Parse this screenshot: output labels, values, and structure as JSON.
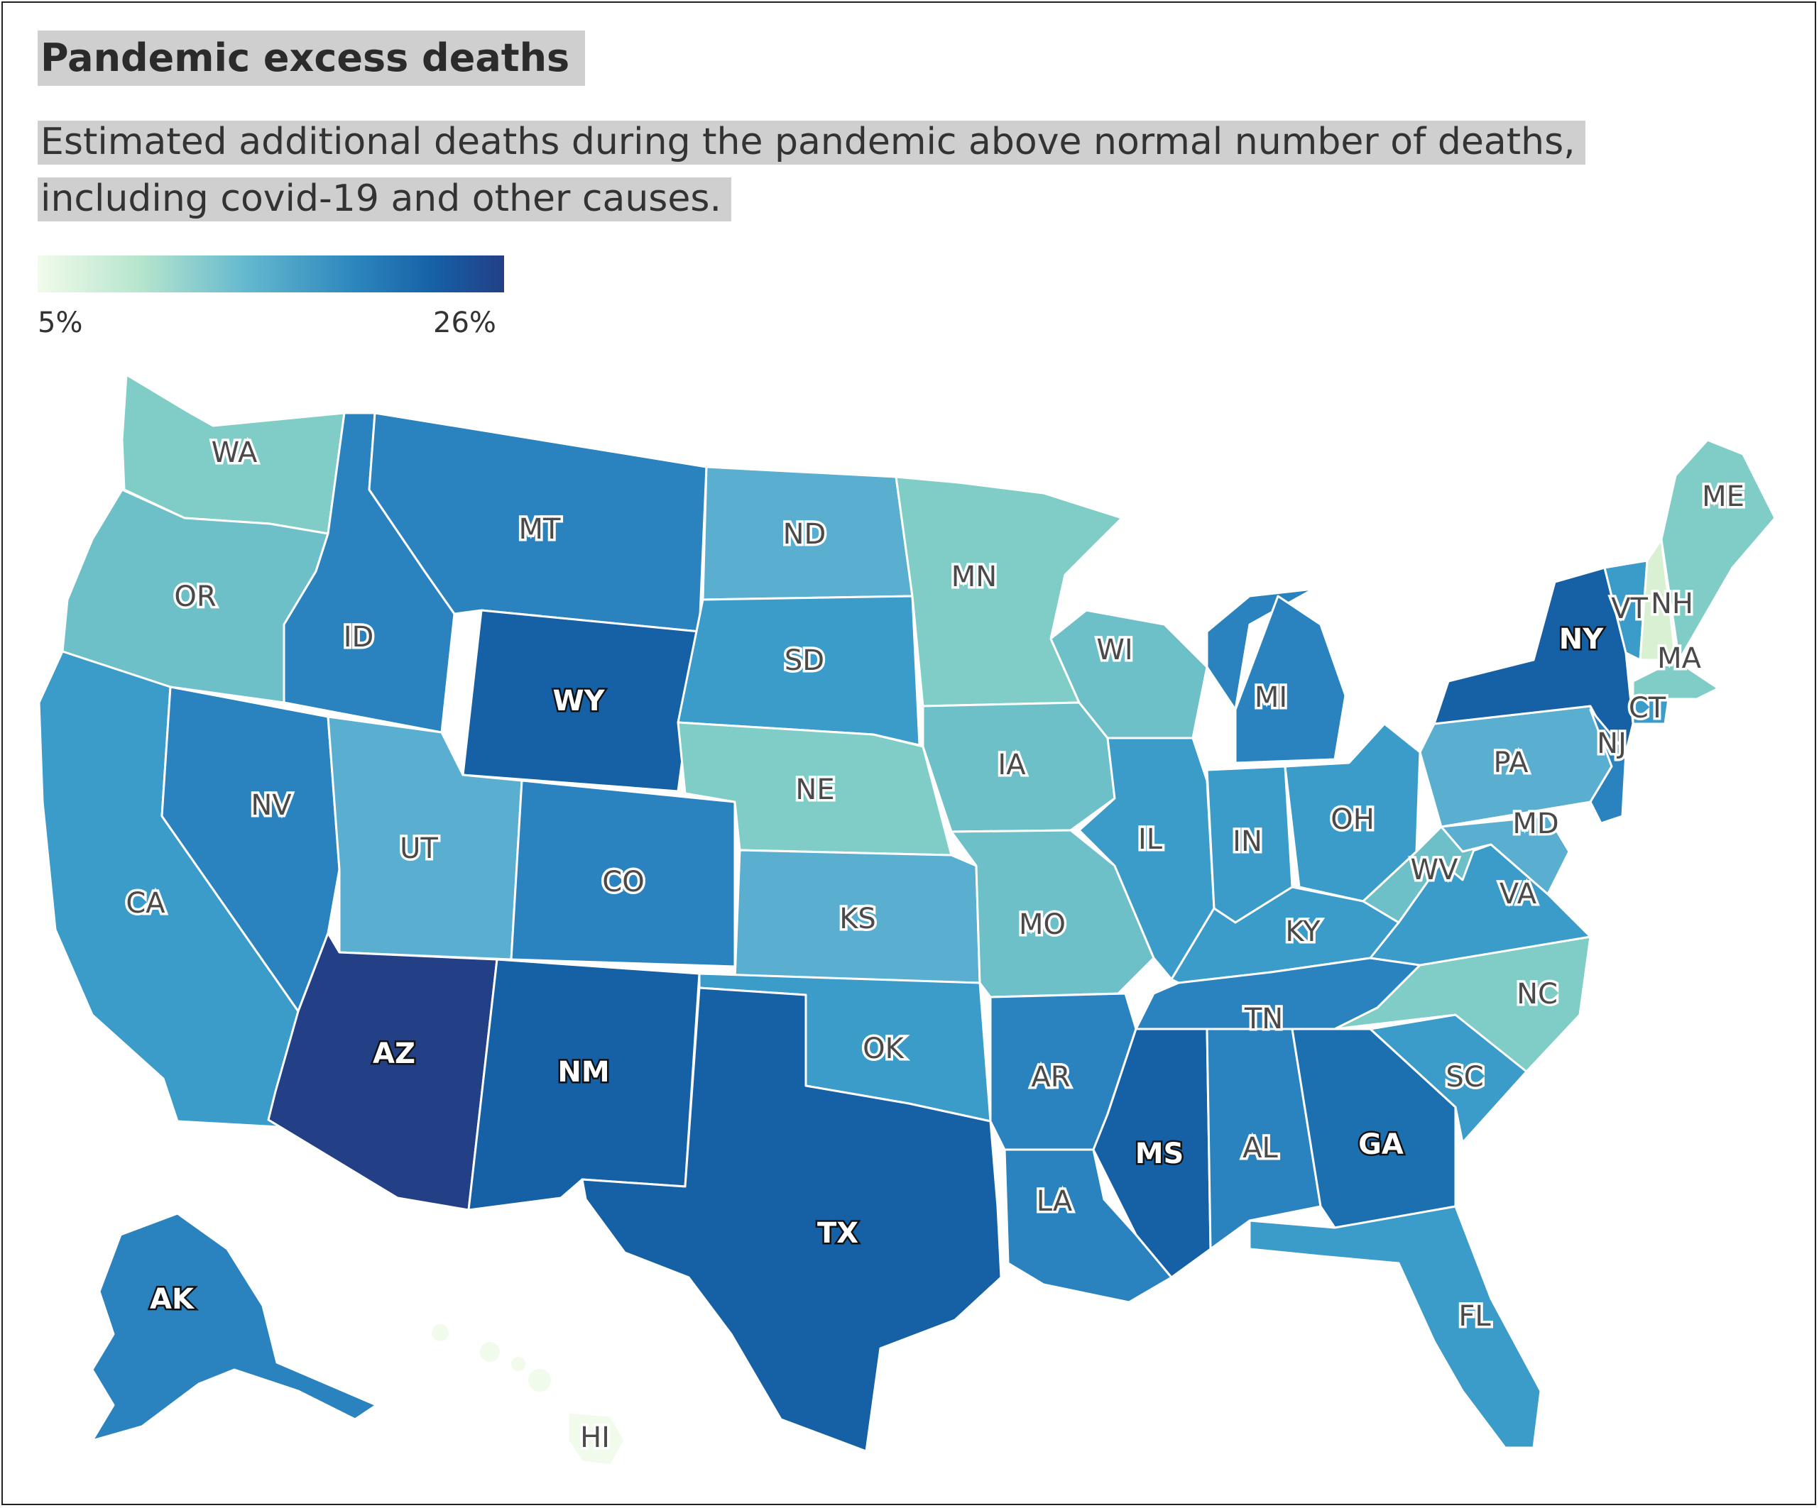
{
  "title": "Pandemic excess deaths",
  "subtitle_line1": "Estimated additional deaths during the pandemic above normal number of deaths,",
  "subtitle_line2": "including covid-19 and other causes.",
  "legend": {
    "min_label": "5%",
    "max_label": "26%"
  },
  "colors": {
    "c1": "#f1fbeb",
    "c2": "#d9f0d3",
    "c3": "#7fcdc6",
    "c4": "#6dbfc8",
    "c5": "#5aaecf",
    "c6": "#3b9bc9",
    "c7": "#2a83be",
    "c8": "#1d70b0",
    "c9": "#1660a6",
    "c10": "#233f86"
  },
  "states": [
    {
      "abbr": "WA",
      "color": "c3"
    },
    {
      "abbr": "OR",
      "color": "c4"
    },
    {
      "abbr": "CA",
      "color": "c6"
    },
    {
      "abbr": "ID",
      "color": "c7"
    },
    {
      "abbr": "NV",
      "color": "c7"
    },
    {
      "abbr": "MT",
      "color": "c7"
    },
    {
      "abbr": "WY",
      "color": "c9"
    },
    {
      "abbr": "UT",
      "color": "c5"
    },
    {
      "abbr": "AZ",
      "color": "c10"
    },
    {
      "abbr": "CO",
      "color": "c7"
    },
    {
      "abbr": "NM",
      "color": "c9"
    },
    {
      "abbr": "ND",
      "color": "c5"
    },
    {
      "abbr": "SD",
      "color": "c6"
    },
    {
      "abbr": "NE",
      "color": "c3"
    },
    {
      "abbr": "KS",
      "color": "c5"
    },
    {
      "abbr": "OK",
      "color": "c6"
    },
    {
      "abbr": "TX",
      "color": "c9"
    },
    {
      "abbr": "MN",
      "color": "c3"
    },
    {
      "abbr": "IA",
      "color": "c4"
    },
    {
      "abbr": "MO",
      "color": "c4"
    },
    {
      "abbr": "AR",
      "color": "c7"
    },
    {
      "abbr": "LA",
      "color": "c7"
    },
    {
      "abbr": "WI",
      "color": "c4"
    },
    {
      "abbr": "IL",
      "color": "c6"
    },
    {
      "abbr": "MI",
      "color": "c7"
    },
    {
      "abbr": "IN",
      "color": "c6"
    },
    {
      "abbr": "OH",
      "color": "c6"
    },
    {
      "abbr": "KY",
      "color": "c6"
    },
    {
      "abbr": "TN",
      "color": "c7"
    },
    {
      "abbr": "MS",
      "color": "c9"
    },
    {
      "abbr": "AL",
      "color": "c7"
    },
    {
      "abbr": "GA",
      "color": "c8"
    },
    {
      "abbr": "FL",
      "color": "c6"
    },
    {
      "abbr": "SC",
      "color": "c6"
    },
    {
      "abbr": "NC",
      "color": "c3"
    },
    {
      "abbr": "VA",
      "color": "c6"
    },
    {
      "abbr": "WV",
      "color": "c4"
    },
    {
      "abbr": "MD",
      "color": "c5"
    },
    {
      "abbr": "PA",
      "color": "c5"
    },
    {
      "abbr": "NY",
      "color": "c9"
    },
    {
      "abbr": "NJ",
      "color": "c7"
    },
    {
      "abbr": "VT",
      "color": "c6"
    },
    {
      "abbr": "NH",
      "color": "c2"
    },
    {
      "abbr": "ME",
      "color": "c3"
    },
    {
      "abbr": "MA",
      "color": "c3"
    },
    {
      "abbr": "CT",
      "color": "c6"
    },
    {
      "abbr": "AK",
      "color": "c7"
    },
    {
      "abbr": "HI",
      "color": "c1"
    }
  ]
}
